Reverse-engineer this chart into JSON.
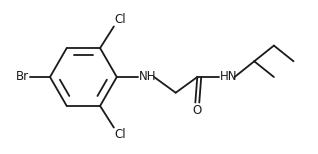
{
  "background": "#ffffff",
  "line_color": "#1a1a1a",
  "text_color": "#1a1a1a",
  "br_label": "Br",
  "cl_top_label": "Cl",
  "cl_bottom_label": "Cl",
  "nh1_label": "NH",
  "hn_label": "HN",
  "o_label": "O",
  "figsize": [
    3.18,
    1.54
  ],
  "dpi": 100
}
